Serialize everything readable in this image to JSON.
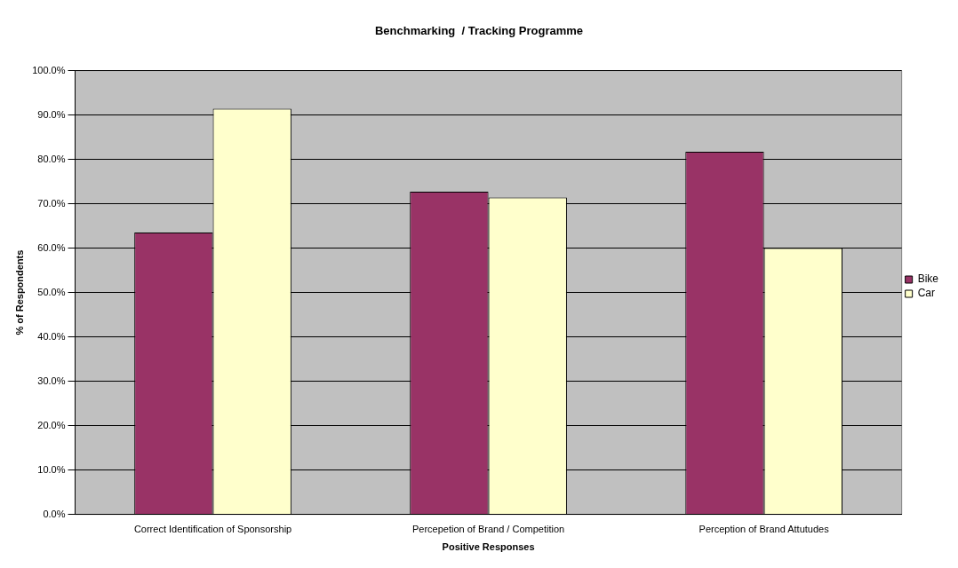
{
  "chart_data": {
    "type": "bar",
    "title": "Benchmarking  / Tracking Programme",
    "xlabel": "Positive Responses",
    "ylabel": "% of Respondents",
    "categories": [
      "Correct Identification of Sponsorship",
      "Percepetion of Brand / Competition",
      "Perception of Brand Attutudes"
    ],
    "series": [
      {
        "name": "Bike",
        "color": "#993366",
        "values": [
          63.5,
          72.7,
          81.7
        ]
      },
      {
        "name": "Car",
        "color": "#ffffcc",
        "values": [
          91.4,
          71.4,
          60.0
        ]
      }
    ],
    "ylim": [
      0,
      100
    ],
    "yticks": [
      {
        "value": 0,
        "label": "0.0%"
      },
      {
        "value": 10,
        "label": "10.0%"
      },
      {
        "value": 20,
        "label": "20.0%"
      },
      {
        "value": 30,
        "label": "30.0%"
      },
      {
        "value": 40,
        "label": "40.0%"
      },
      {
        "value": 50,
        "label": "50.0%"
      },
      {
        "value": 60,
        "label": "60.0%"
      },
      {
        "value": 70,
        "label": "70.0%"
      },
      {
        "value": 80,
        "label": "80.0%"
      },
      {
        "value": 90,
        "label": "90.0%"
      },
      {
        "value": 100,
        "label": "100.0%"
      }
    ],
    "grid": "y",
    "legend": "right"
  }
}
